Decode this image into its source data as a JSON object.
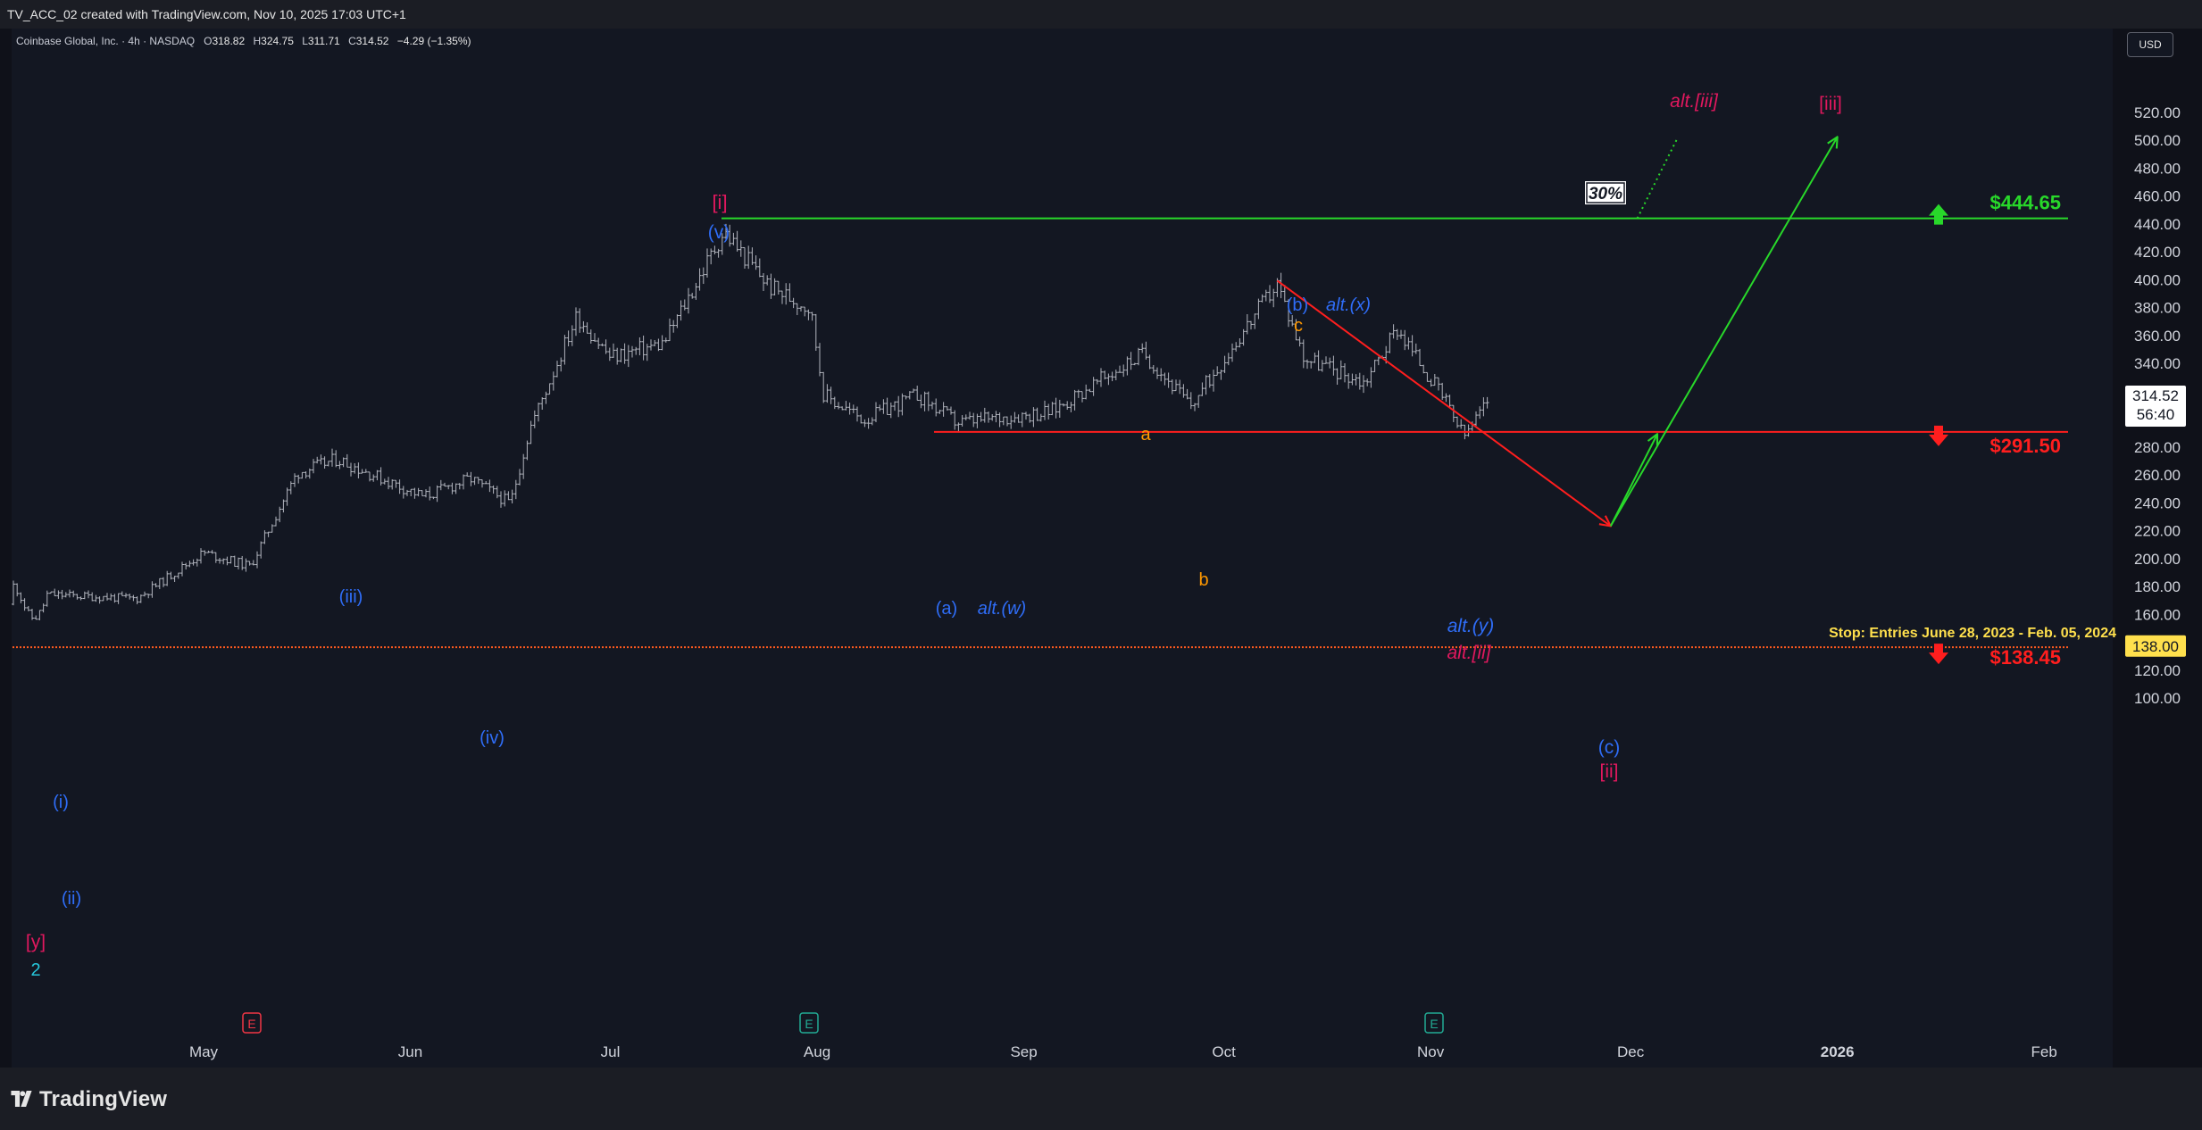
{
  "header": {
    "created_text": "TV_ACC_02 created with TradingView.com, Nov 10, 2025 17:03 UTC+1"
  },
  "symbol": {
    "name": "Coinbase Global, Inc. · 4h · NASDAQ",
    "open_key": "O",
    "open": "318.82",
    "high_key": "H",
    "high": "324.75",
    "low_key": "L",
    "low": "311.71",
    "close_key": "C",
    "close": "314.52",
    "change": "−4.29 (−1.35%)"
  },
  "currency": "USD",
  "brand": "TradingView",
  "colors": {
    "background": "#131722",
    "candles": "#b2b5be",
    "green": "#28d82a",
    "red": "#ff1e1e",
    "blue_wave": "#2f6df7",
    "magenta_wave": "#e0185e",
    "orange_wave": "#ff9800",
    "teal": "#26c6da",
    "stop_label": "#ffe04d"
  },
  "chart_data": {
    "type": "candlestick",
    "title": "Coinbase Global, Inc. · 4h · NASDAQ",
    "ylim": [
      90,
      530
    ],
    "y_ticks": [
      "100.00",
      "120.00",
      "140.00",
      "160.00",
      "180.00",
      "200.00",
      "220.00",
      "240.00",
      "260.00",
      "280.00",
      "300.00",
      "320.00",
      "340.00",
      "360.00",
      "380.00",
      "400.00",
      "420.00",
      "440.00",
      "460.00",
      "480.00",
      "500.00",
      "520.00"
    ],
    "x_labels": [
      "May",
      "Jun",
      "Jul",
      "Aug",
      "Sep",
      "Oct",
      "Nov",
      "Dec",
      "2026",
      "Feb"
    ],
    "last_price": "314.52",
    "countdown": "56:40",
    "stop_axis_label": "138.00",
    "approx_close_path": [
      [
        "2025-04-07",
        175
      ],
      [
        "2025-04-21",
        172
      ],
      [
        "2025-05-01",
        205
      ],
      [
        "2025-05-08",
        195
      ],
      [
        "2025-05-15",
        262
      ],
      [
        "2025-05-21",
        272
      ],
      [
        "2025-06-03",
        245
      ],
      [
        "2025-06-10",
        258
      ],
      [
        "2025-06-16",
        240
      ],
      [
        "2025-06-19",
        295
      ],
      [
        "2025-06-26",
        375
      ],
      [
        "2025-07-01",
        345
      ],
      [
        "2025-07-09",
        355
      ],
      [
        "2025-07-18",
        435
      ],
      [
        "2025-07-25",
        395
      ],
      [
        "2025-07-31",
        380
      ],
      [
        "2025-08-02",
        318
      ],
      [
        "2025-08-08",
        300
      ],
      [
        "2025-08-16",
        318
      ],
      [
        "2025-08-22",
        298
      ],
      [
        "2025-09-05",
        306
      ],
      [
        "2025-09-19",
        348
      ],
      [
        "2025-09-26",
        310
      ],
      [
        "2025-10-09",
        398
      ],
      [
        "2025-10-13",
        345
      ],
      [
        "2025-10-22",
        327
      ],
      [
        "2025-10-27",
        366
      ],
      [
        "2025-11-03",
        315
      ],
      [
        "2025-11-06",
        288
      ],
      [
        "2025-11-10",
        316
      ]
    ],
    "levels": [
      {
        "label": "$444.65",
        "value": 444.65,
        "color": "#28d82a"
      },
      {
        "label": "$291.50",
        "value": 291.5,
        "color": "#ff1e1e"
      },
      {
        "label": "$138.45",
        "value": 138.45,
        "color": "#ff1e1e"
      }
    ],
    "stop_text": "Stop: Entries June 28, 2023 - Feb. 05, 2024",
    "probability_badge": "30%",
    "wave_labels": [
      {
        "text": "[i]",
        "color": "#e0185e"
      },
      {
        "text": "(v)",
        "color": "#2f6df7"
      },
      {
        "text": "(i)",
        "color": "#2f6df7"
      },
      {
        "text": "(ii)",
        "color": "#2f6df7"
      },
      {
        "text": "(iii)",
        "color": "#2f6df7"
      },
      {
        "text": "(iv)",
        "color": "#2f6df7"
      },
      {
        "text": "[y]",
        "color": "#e0185e"
      },
      {
        "text": "2",
        "color": "#26c6da"
      },
      {
        "text": "(a)",
        "color": "#2f6df7"
      },
      {
        "text": "alt.(w)",
        "color": "#2f6df7"
      },
      {
        "text": "a",
        "color": "#ff9800"
      },
      {
        "text": "b",
        "color": "#ff9800"
      },
      {
        "text": "c",
        "color": "#ff9800"
      },
      {
        "text": "(b)",
        "color": "#2f6df7"
      },
      {
        "text": "alt.(x)",
        "color": "#2f6df7"
      },
      {
        "text": "alt.(y)",
        "color": "#2f6df7"
      },
      {
        "text": "alt.[ii]",
        "color": "#e0185e"
      },
      {
        "text": "(c)",
        "color": "#2f6df7"
      },
      {
        "text": "[ii]",
        "color": "#e0185e"
      },
      {
        "text": "[iii]",
        "color": "#e0185e"
      },
      {
        "text": "alt.[iii]",
        "color": "#e0185e"
      }
    ],
    "earnings_markers": [
      {
        "text": "E",
        "color": "#f23645"
      },
      {
        "text": "E",
        "color": "#22ab94"
      },
      {
        "text": "E",
        "color": "#22ab94"
      }
    ],
    "projections": [
      {
        "from": [
          "2025-10-09",
          400
        ],
        "to": [
          "2025-11-28",
          224
        ],
        "color": "#ff1e1e",
        "style": "arrow"
      },
      {
        "from": [
          "2025-11-28",
          224
        ],
        "to": [
          "2025-12-05",
          290
        ],
        "color": "#28d82a",
        "style": "arrow"
      },
      {
        "from": [
          "2025-11-28",
          224
        ],
        "to": [
          "2026-01-01",
          503
        ],
        "color": "#28d82a",
        "style": "arrow"
      },
      {
        "from": [
          "2025-12-02",
          444.65
        ],
        "to": [
          "2025-12-08",
          502
        ],
        "color": "#28d82a",
        "style": "dotted"
      }
    ]
  }
}
